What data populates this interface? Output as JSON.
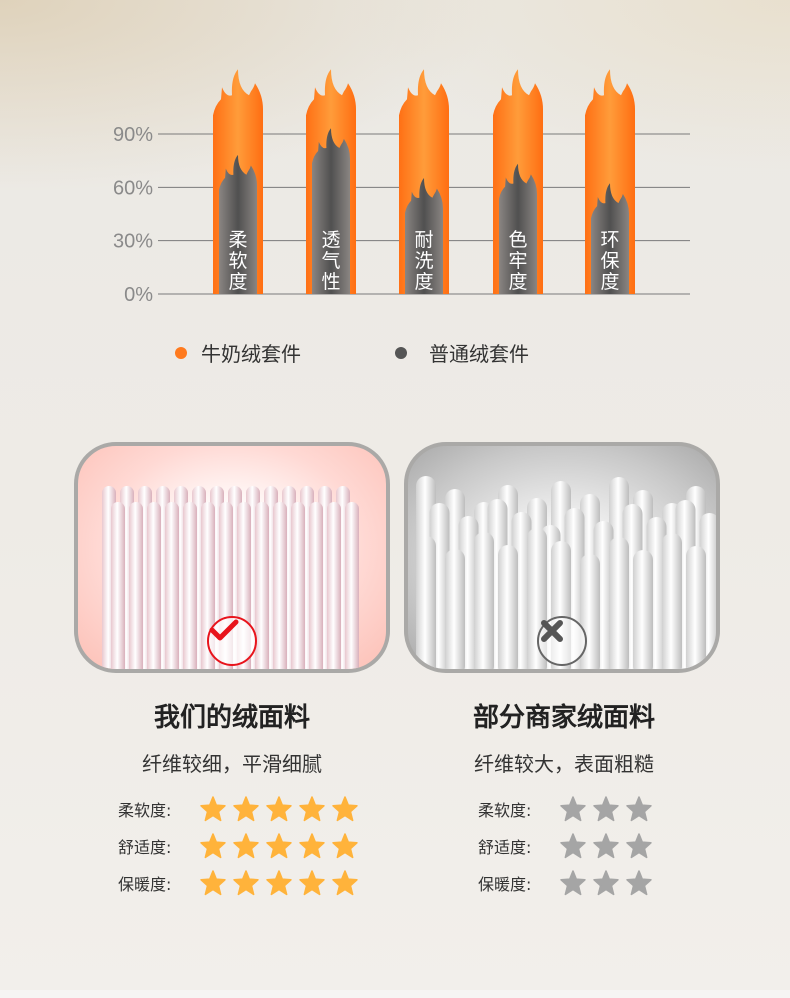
{
  "chart_data": {
    "type": "bar",
    "categories": [
      "柔软度",
      "透气性",
      "耐洗度",
      "色牢度",
      "环保度"
    ],
    "series": [
      {
        "name": "牛奶绒套件",
        "values": [
          105,
          105,
          105,
          105,
          105
        ],
        "color": "#ff7a1e"
      },
      {
        "name": "普通绒套件",
        "values": [
          62,
          77,
          49,
          57,
          46
        ],
        "color": "#5a5756"
      }
    ],
    "yticks": [
      "0%",
      "30%",
      "60%",
      "90%"
    ],
    "ytick_values": [
      0,
      30,
      60,
      90
    ],
    "ylim": [
      0,
      125
    ],
    "grid": true,
    "legend_position": "bottom"
  },
  "legend": [
    {
      "label": "牛奶绒套件",
      "color": "#ff7a1e"
    },
    {
      "label": "普通绒套件",
      "color": "#555555"
    }
  ],
  "cards": [
    {
      "title": "我们的绒面料",
      "subtitle": "纤维较细，平滑细腻",
      "badge": "check-icon",
      "ratings": [
        {
          "label": "柔软度:",
          "stars": 5
        },
        {
          "label": "舒适度:",
          "stars": 5
        },
        {
          "label": "保暖度:",
          "stars": 5
        }
      ],
      "star_color": "#ffb33b"
    },
    {
      "title": "部分商家绒面料",
      "subtitle": "纤维较大，表面粗糙",
      "badge": "cross-icon",
      "ratings": [
        {
          "label": "柔软度:",
          "stars": 3
        },
        {
          "label": "舒适度:",
          "stars": 3
        },
        {
          "label": "保暖度:",
          "stars": 3
        }
      ],
      "star_color": "#a5a5a5"
    }
  ]
}
